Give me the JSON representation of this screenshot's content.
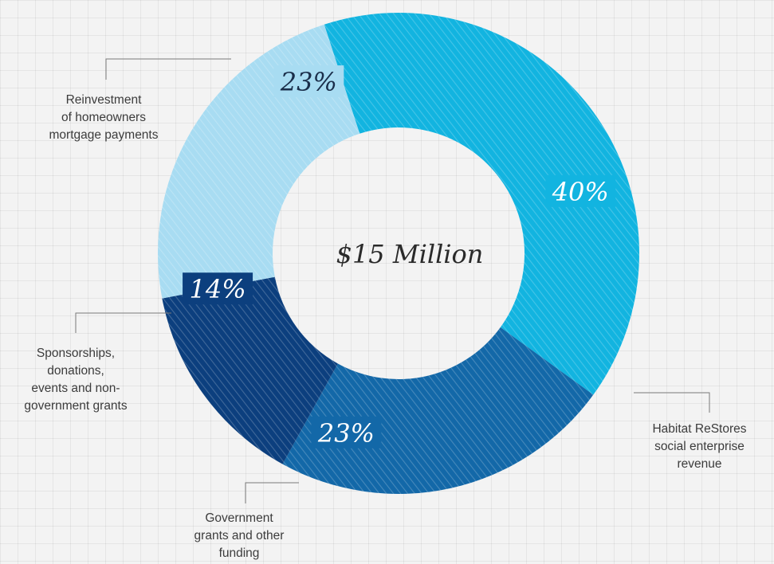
{
  "chart_data": {
    "type": "pie",
    "variant": "donut",
    "center_label": "$15 Million",
    "slices": [
      {
        "label_lines": [
          "Habitat ReStores",
          "social enterprise",
          "revenue"
        ],
        "value": 40,
        "display": "40%",
        "color": "#12b4e0"
      },
      {
        "label_lines": [
          "Government",
          "grants and other",
          "funding"
        ],
        "value": 23,
        "display": "23%",
        "color": "#1368a8"
      },
      {
        "label_lines": [
          "Sponsorships,",
          "donations,",
          "events and non-",
          "government grants"
        ],
        "value": 14,
        "display": "14%",
        "color": "#0c3f7e"
      },
      {
        "label_lines": [
          "Reinvestment",
          "of homeowners",
          "mortgage payments"
        ],
        "value": 23,
        "display": "23%",
        "color": "#a8dcf2"
      }
    ]
  }
}
